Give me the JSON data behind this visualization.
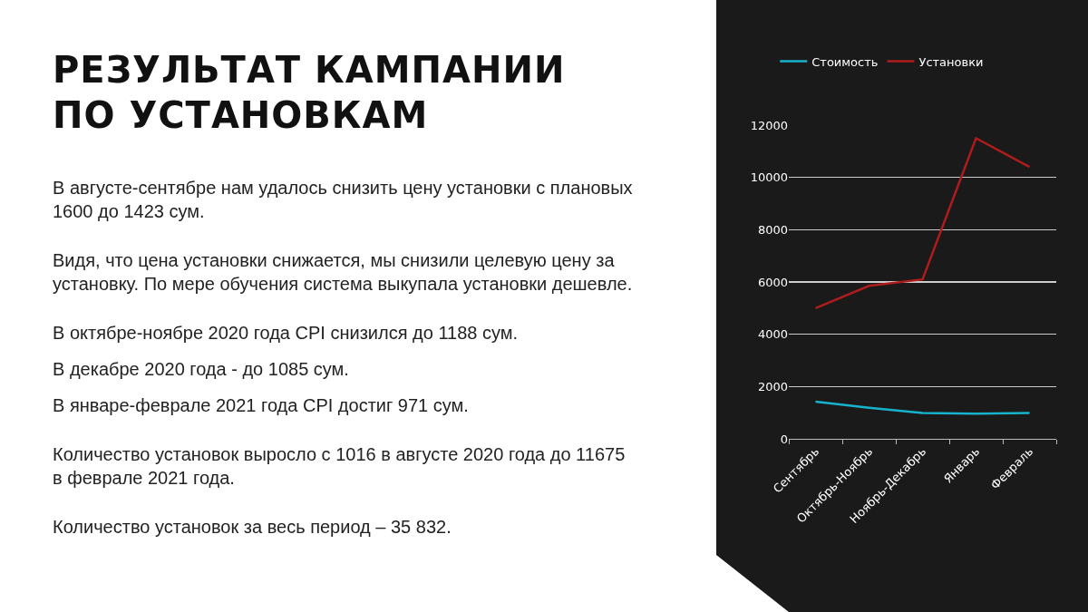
{
  "chart_data": {
    "type": "line",
    "title": "РЕЗУЛЬТАТ КАМПАНИИ ПО УСТАНОВКАМ",
    "annotations": [
      "В августе-сентябре нам удалось снизить цену установки с плановых 1600 до 1423 сум.",
      "Видя, что цена установки снижается, мы снизили целевую цену за установку. По мере обучения система выкупала установки дешевле.",
      "В октябре-ноябре 2020 года CPI снизился до 1188 сум.",
      "В декабре 2020 года - до 1085 сум.",
      "В январе-феврале 2021 года CPI достиг 971 сум.",
      "Количество установок выросло с 1016 в августе 2020 года до 11675 в феврале 2021 года.",
      "Количество установок за весь период – 35 832."
    ],
    "categories": [
      "Сентябрь",
      "Октябрь-Ноябрь",
      "Ноябрь-Декабрь",
      "Январь",
      "Февраль"
    ],
    "series": [
      {
        "name": "Стоимость",
        "color": "#17b3cc",
        "values": [
          1420,
          1190,
          990,
          960,
          990
        ]
      },
      {
        "name": "Установки",
        "color": "#b01c1c",
        "values": [
          5000,
          5850,
          6100,
          11500,
          10400
        ]
      }
    ],
    "ylim": [
      0,
      12000
    ],
    "yticks": [
      0,
      2000,
      4000,
      6000,
      8000,
      10000,
      12000
    ],
    "grid": "y",
    "legend": "top"
  }
}
